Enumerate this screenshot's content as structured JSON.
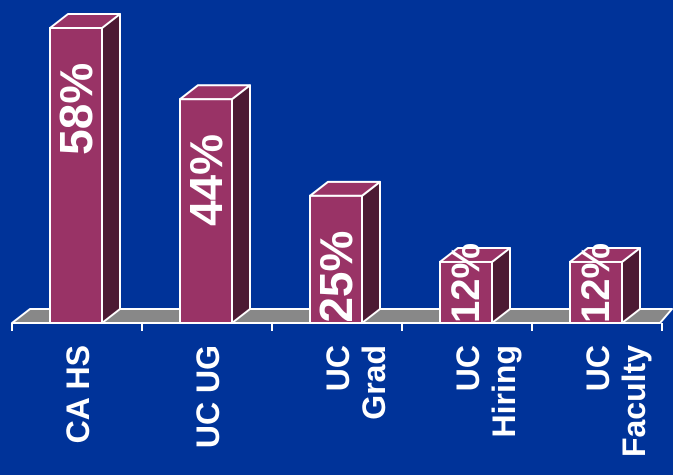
{
  "chart_data": {
    "type": "bar",
    "categories": [
      "CA HS",
      "UC UG",
      "UC Grad",
      "UC Hiring",
      "UC Faculty"
    ],
    "category_lines": [
      [
        "CA HS"
      ],
      [
        "UC UG"
      ],
      [
        "UC",
        "Grad"
      ],
      [
        "UC",
        "Hiring"
      ],
      [
        "UC",
        "Faculty"
      ]
    ],
    "values": [
      58,
      44,
      25,
      12,
      12
    ],
    "value_labels": [
      "58%",
      "44%",
      "25%",
      "12%",
      "12%"
    ],
    "ylim": [
      0,
      60
    ],
    "grid": false,
    "legend": "none",
    "title": "",
    "xlabel": "",
    "ylabel": ""
  },
  "colors": {
    "background": "#003399",
    "bar_front": "#993366",
    "bar_side": "#4d1a33",
    "bar_top": "#993366",
    "floor": "#888888",
    "text": "#ffffff",
    "edge": "#ffffff"
  }
}
